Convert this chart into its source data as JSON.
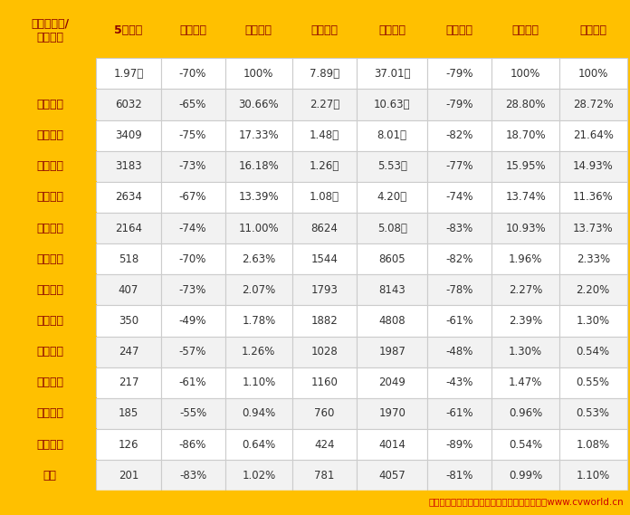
{
  "headers": [
    "牵引车品牌/\n行业总计",
    "5月销量",
    "同比增长",
    "月度份额",
    "今年累计",
    "上年累计",
    "累计增长",
    "累计份额",
    "同期份额"
  ],
  "rows": [
    [
      "",
      "1.97万",
      "-70%",
      "100%",
      "7.89万",
      "37.01万",
      "-79%",
      "100%",
      "100%"
    ],
    [
      "一汽解放",
      "6032",
      "-65%",
      "30.66%",
      "2.27万",
      "10.63万",
      "-79%",
      "28.80%",
      "28.72%"
    ],
    [
      "中国重汽",
      "3409",
      "-75%",
      "17.33%",
      "1.48万",
      "8.01万",
      "-82%",
      "18.70%",
      "21.64%"
    ],
    [
      "东风公司",
      "3183",
      "-73%",
      "16.18%",
      "1.26万",
      "5.53万",
      "-77%",
      "15.95%",
      "14.93%"
    ],
    [
      "福田汽车",
      "2634",
      "-67%",
      "13.39%",
      "1.08万",
      "4.20万",
      "-74%",
      "13.74%",
      "11.36%"
    ],
    [
      "陕汽集团",
      "2164",
      "-74%",
      "11.00%",
      "8624",
      "5.08万",
      "-83%",
      "10.93%",
      "13.73%"
    ],
    [
      "上汽红岩",
      "518",
      "-70%",
      "2.63%",
      "1544",
      "8605",
      "-82%",
      "1.96%",
      "2.33%"
    ],
    [
      "三一集团",
      "407",
      "-73%",
      "2.07%",
      "1793",
      "8143",
      "-78%",
      "2.27%",
      "2.20%"
    ],
    [
      "大运重卡",
      "350",
      "-49%",
      "1.78%",
      "1882",
      "4808",
      "-61%",
      "2.39%",
      "1.30%"
    ],
    [
      "徐工重卡",
      "247",
      "-57%",
      "1.26%",
      "1028",
      "1987",
      "-48%",
      "1.30%",
      "0.54%"
    ],
    [
      "汉马科技",
      "217",
      "-61%",
      "1.10%",
      "1160",
      "2049",
      "-43%",
      "1.47%",
      "0.55%"
    ],
    [
      "北奔重汽",
      "185",
      "-55%",
      "0.94%",
      "760",
      "1970",
      "-61%",
      "0.96%",
      "0.53%"
    ],
    [
      "江淮汽车",
      "126",
      "-86%",
      "0.64%",
      "424",
      "4014",
      "-89%",
      "0.54%",
      "1.08%"
    ],
    [
      "其他",
      "201",
      "-83%",
      "1.02%",
      "781",
      "4057",
      "-81%",
      "0.99%",
      "1.10%"
    ]
  ],
  "footer": "数据来源：终端销量统计。制表：第一商用车网www.cvworld.cn",
  "gold": "#FFC000",
  "dark_red": "#8B0000",
  "red": "#CC0000",
  "white": "#FFFFFF",
  "light_gray": "#F2F2F2",
  "dark_text": "#333333",
  "border_light": "#DDDDDD",
  "figsize": [
    6.96,
    5.69
  ],
  "dpi": 100
}
